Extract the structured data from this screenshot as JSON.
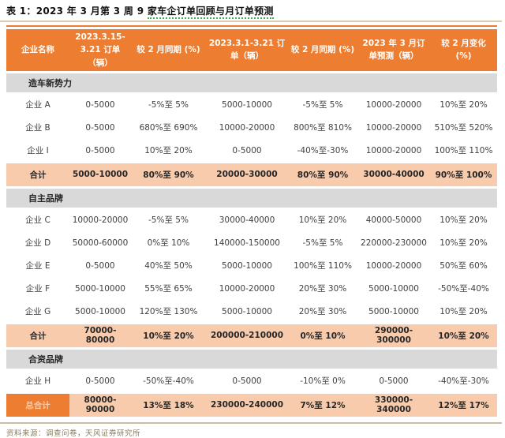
{
  "page": {
    "title_prefix": "表 1：2023 年 3 月第 3 周 9 ",
    "title_highlight": "家车企订单回顾与月订单预测"
  },
  "table": {
    "columns": [
      "企业名称",
      "2023.3.15-3.21 订单（辆）",
      "较 2 月同期 (%)",
      "2023.3.1-3.21 订单（辆）",
      "较 2 月同期 (%)",
      "2023 年 3 月订单预测（辆）",
      "较 2 月变化 (%)"
    ],
    "rows": [
      {
        "type": "section",
        "cells": [
          "造车新势力"
        ]
      },
      {
        "type": "data",
        "cells": [
          "企业 A",
          "0-5000",
          "-5%至 5%",
          "5000-10000",
          "-5%至 5%",
          "10000-20000",
          "10%至 20%"
        ]
      },
      {
        "type": "data",
        "cells": [
          "企业 B",
          "0-5000",
          "680%至 690%",
          "10000-20000",
          "800%至 810%",
          "10000-20000",
          "510%至 520%"
        ]
      },
      {
        "type": "data",
        "cells": [
          "企业 I",
          "0-5000",
          "10%至 20%",
          "0-5000",
          "-40%至-30%",
          "10000-20000",
          "100%至 110%"
        ]
      },
      {
        "type": "subtotal",
        "cells": [
          "合计",
          "5000-10000",
          "80%至 90%",
          "20000-30000",
          "80%至 90%",
          "30000-40000",
          "90%至 100%"
        ]
      },
      {
        "type": "section",
        "cells": [
          "自主品牌"
        ]
      },
      {
        "type": "data",
        "cells": [
          "企业 C",
          "10000-20000",
          "-5%至 5%",
          "30000-40000",
          "10%至 20%",
          "40000-50000",
          "10%至 20%"
        ]
      },
      {
        "type": "data",
        "cells": [
          "企业 D",
          "50000-60000",
          "0%至 10%",
          "140000-150000",
          "-5%至 5%",
          "220000-230000",
          "10%至 20%"
        ]
      },
      {
        "type": "data",
        "cells": [
          "企业 E",
          "0-5000",
          "40%至 50%",
          "5000-10000",
          "100%至 110%",
          "10000-20000",
          "50%至 60%"
        ]
      },
      {
        "type": "data",
        "cells": [
          "企业 F",
          "5000-10000",
          "55%至 65%",
          "10000-20000",
          "20%至 30%",
          "5000-10000",
          "-50%至-40%"
        ]
      },
      {
        "type": "data",
        "cells": [
          "企业 G",
          "5000-10000",
          "120%至 130%",
          "5000-10000",
          "20%至 30%",
          "5000-10000",
          "10%至 20%"
        ]
      },
      {
        "type": "subtotal",
        "cells": [
          "合计",
          "70000-80000",
          "10%至 20%",
          "200000-210000",
          "0%至 10%",
          "290000-300000",
          "10%至 20%"
        ]
      },
      {
        "type": "section",
        "cells": [
          "合资品牌"
        ]
      },
      {
        "type": "data",
        "cells": [
          "企业 H",
          "0-5000",
          "-50%至-40%",
          "0-5000",
          "-10%至 0%",
          "0-5000",
          "-40%至-30%"
        ]
      },
      {
        "type": "grandtotal",
        "cells": [
          "总合计",
          "80000-90000",
          "13%至 18%",
          "230000-240000",
          "7%至 12%",
          "330000-340000",
          "12%至 17%"
        ]
      }
    ]
  },
  "footer": {
    "source": "资料来源：调查问卷，天风证券研究所"
  },
  "colors": {
    "header_bg": "#ed7d31",
    "header_text": "#ffffff",
    "section_bg": "#d9d9d9",
    "subtotal_bg": "#f8cbad",
    "grandtotal_label_bg": "#ed7d31",
    "grandtotal_label_text": "#f8cbad",
    "title_rule": "#d8cbae",
    "footer_rule": "#cbbea0",
    "footer_text": "#8a7c5e",
    "body_text": "#404040",
    "spellcheck_squiggle": "#3fae63"
  }
}
